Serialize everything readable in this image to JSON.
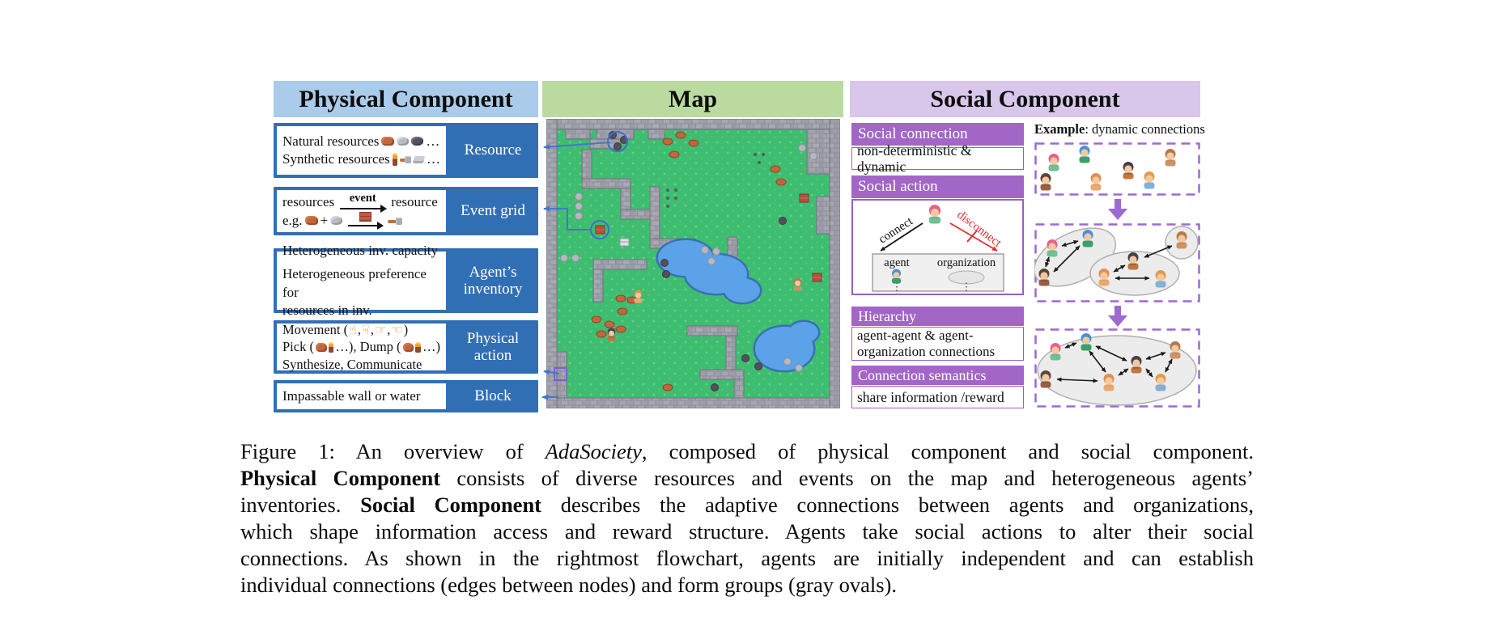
{
  "colors": {
    "physical_header_bg": "#aacbe9",
    "map_header_bg": "#bada9f",
    "social_header_bg": "#d8c7eb",
    "label_box_blue": "#316fb4",
    "section_bar_purple": "#a266c6",
    "dashed_border_purple": "#9d6ad0",
    "connector_arrow_blue": "#4577c8",
    "disconnect_red": "#e03030",
    "map_grass_green": "#3ebd70",
    "map_water_blue": "#5ba2e8",
    "group_oval_gray": "#ececec"
  },
  "figure": {
    "physical": {
      "title": "Physical Component",
      "ellipsis": "…",
      "rows": [
        {
          "label": "Resource",
          "line1": "Natural resources",
          "line2": "Synthetic resources"
        },
        {
          "label": "Event grid",
          "lhs": "resources",
          "arrow_label": "event",
          "rhs": "resource",
          "eg": "e.g.",
          "plus": "+"
        },
        {
          "label": "Agent’s inventory",
          "line1": "Heterogeneous inv. capacity",
          "line2": "Heterogeneous preference for",
          "line3": "resources in inv."
        },
        {
          "label": "Physical action",
          "movement_prefix": "Movement (",
          "hands": [
            "☝",
            "☟",
            "☞",
            "☜"
          ],
          "hand_sep": ",",
          "movement_suffix": ")",
          "pick_prefix": "Pick (",
          "pick_mid": " …), Dump (",
          "pick_suffix": " …)",
          "line3": "Synthesize, Communicate"
        },
        {
          "label": "Block",
          "line1": "Impassable wall or water"
        }
      ]
    },
    "map": {
      "title": "Map"
    },
    "social": {
      "title": "Social Component",
      "connection": {
        "header": "Social connection",
        "body": "non-deterministic & dynamic"
      },
      "action": {
        "header": "Social action",
        "connect_label": "connect",
        "disconnect_label": "disconnect",
        "agent_label": "agent",
        "organization_label": "organization",
        "dots": "⋮"
      },
      "hierarchy": {
        "header": "Hierarchy",
        "line1": "agent-agent & agent-",
        "line2": "organization connections"
      },
      "semantics": {
        "header": "Connection semantics",
        "body": "share information /reward"
      },
      "example": {
        "label_bold": "Example",
        "label_rest": ": dynamic connections",
        "agents": [
          {
            "name": "pink-hair-agent",
            "hair": "#e5608c",
            "body": "#69c493"
          },
          {
            "name": "blue-cap-green-agent",
            "hair": "#4a90d9",
            "body": "#3aa065"
          },
          {
            "name": "tan-monkey-agent",
            "hair": "#b5794c",
            "body": "#cd9367"
          },
          {
            "name": "brown-agent",
            "hair": "#5f4436",
            "body": "#9a5f45"
          },
          {
            "name": "orange-agent",
            "hair": "#df8f55",
            "body": "#e8aa6e"
          },
          {
            "name": "dark-cap-agent",
            "hair": "#45404c",
            "body": "#c3763f"
          },
          {
            "name": "orange-hair-blue-agent",
            "hair": "#e09b4e",
            "body": "#7fb2dd"
          }
        ]
      }
    },
    "caption": {
      "lines": [
        {
          "s1": "Figure 1: An overview of ",
          "s2": "AdaSociety",
          "s3": ", composed of physical component and social component."
        },
        {
          "s1": "Physical Component",
          "s2": " consists of diverse resources and events on the map and heterogeneous agents’"
        },
        {
          "s1": "inventories. ",
          "s2": "Social Component",
          "s3": " describes the adaptive connections between agents and organizations,"
        },
        {
          "s1": "which shape information access and reward structure. Agents take social actions to alter their social"
        },
        {
          "s1": "connections. As shown in the rightmost flowchart, agents are initially independent and can establish"
        },
        {
          "s1": "individual connections (edges between nodes) and form groups (gray ovals)."
        }
      ]
    }
  }
}
